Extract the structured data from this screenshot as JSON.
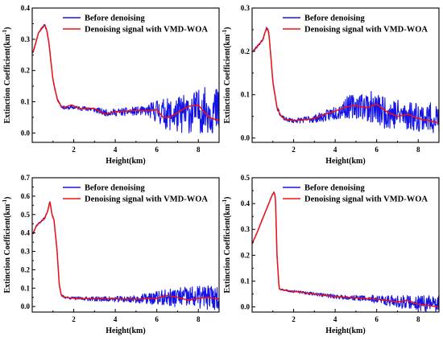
{
  "colors": {
    "before": "#1515e8",
    "after": "#ee1111",
    "axis": "#000000"
  },
  "chart_data": [
    {
      "type": "line",
      "xlabel": "Height(km)",
      "ylabel": "Extinction Coefficient(km",
      "ylabel_sup": "-1",
      "ylabel_close": ")",
      "xlim": [
        0,
        9
      ],
      "ylim": [
        -0.03,
        0.4
      ],
      "xticks": [
        "2",
        "4",
        "6",
        "8"
      ],
      "yticks": [
        "0.0",
        "0.1",
        "0.2",
        "0.3",
        "0.4"
      ],
      "legend": {
        "position": "top-right",
        "entries": [
          "Before denoising",
          "Denoising signal with VMD-WOA"
        ]
      },
      "series": [
        {
          "name": "Before denoising",
          "noise": [
            [
              0,
              0.004
            ],
            [
              2,
              0.006
            ],
            [
              4,
              0.012
            ],
            [
              5.5,
              0.015
            ],
            [
              6,
              0.04
            ],
            [
              7,
              0.06
            ],
            [
              9,
              0.08
            ]
          ],
          "seed": 11,
          "x": [
            0.05,
            0.3,
            0.5,
            0.6,
            0.7,
            0.8,
            0.9,
            1.0,
            1.2,
            1.4,
            1.6,
            2.0,
            2.5,
            3.0,
            3.5,
            4.0,
            5.0,
            6.0,
            6.5,
            7.0,
            8.0,
            8.5,
            9.0
          ],
          "values": [
            0.26,
            0.32,
            0.34,
            0.345,
            0.33,
            0.29,
            0.23,
            0.17,
            0.11,
            0.085,
            0.08,
            0.082,
            0.078,
            0.075,
            0.065,
            0.066,
            0.07,
            0.072,
            0.06,
            0.058,
            0.07,
            0.075,
            0.065
          ]
        },
        {
          "name": "Denoising signal with VMD-WOA",
          "x": [
            0.05,
            0.3,
            0.5,
            0.6,
            0.7,
            0.8,
            0.9,
            1.0,
            1.2,
            1.4,
            1.6,
            1.9,
            2.3,
            2.7,
            3.0,
            3.5,
            4.0,
            4.5,
            5.0,
            5.5,
            6.0,
            6.3,
            6.6,
            7.0,
            7.5,
            8.0,
            8.5,
            9.0
          ],
          "values": [
            0.26,
            0.32,
            0.34,
            0.345,
            0.33,
            0.29,
            0.23,
            0.17,
            0.11,
            0.085,
            0.083,
            0.09,
            0.078,
            0.08,
            0.078,
            0.06,
            0.068,
            0.07,
            0.072,
            0.071,
            0.075,
            0.05,
            0.05,
            0.065,
            0.085,
            0.09,
            0.05,
            0.04
          ]
        }
      ]
    },
    {
      "type": "line",
      "xlabel": "Height(km)",
      "ylabel": "Extinction Coefficient(km",
      "ylabel_sup": "-1",
      "ylabel_close": ")",
      "xlim": [
        0,
        9
      ],
      "ylim": [
        -0.01,
        0.3
      ],
      "xticks": [
        "2",
        "4",
        "6",
        "8"
      ],
      "yticks": [
        "0.0",
        "0.1",
        "0.2",
        "0.3"
      ],
      "legend": {
        "position": "top-right",
        "entries": [
          "Before denoising",
          "Denoising signal with VMD-WOA"
        ]
      },
      "series": [
        {
          "name": "Before denoising",
          "noise": [
            [
              0,
              0.003
            ],
            [
              2,
              0.005
            ],
            [
              3.5,
              0.012
            ],
            [
              4.5,
              0.025
            ],
            [
              6,
              0.04
            ],
            [
              7.5,
              0.035
            ],
            [
              9,
              0.035
            ]
          ],
          "seed": 23,
          "x": [
            0.05,
            0.3,
            0.5,
            0.6,
            0.7,
            0.8,
            0.9,
            1.0,
            1.2,
            1.4,
            1.6,
            2.0,
            2.5,
            3.0,
            3.5,
            4.0,
            4.5,
            5.0,
            5.5,
            6.0,
            6.5,
            7.0,
            8.0,
            9.0
          ],
          "values": [
            0.2,
            0.215,
            0.225,
            0.24,
            0.255,
            0.245,
            0.19,
            0.13,
            0.07,
            0.05,
            0.043,
            0.04,
            0.042,
            0.045,
            0.05,
            0.06,
            0.07,
            0.075,
            0.075,
            0.065,
            0.06,
            0.055,
            0.05,
            0.045
          ]
        },
        {
          "name": "Denoising signal with VMD-WOA",
          "x": [
            0.05,
            0.3,
            0.5,
            0.6,
            0.7,
            0.8,
            0.9,
            1.0,
            1.2,
            1.4,
            1.6,
            2.0,
            2.5,
            3.0,
            3.5,
            4.0,
            4.5,
            5.0,
            5.5,
            6.0,
            6.5,
            7.0,
            7.5,
            8.0,
            8.5,
            9.0
          ],
          "values": [
            0.2,
            0.215,
            0.225,
            0.24,
            0.255,
            0.245,
            0.19,
            0.13,
            0.07,
            0.05,
            0.043,
            0.04,
            0.042,
            0.045,
            0.055,
            0.062,
            0.072,
            0.075,
            0.07,
            0.078,
            0.06,
            0.05,
            0.055,
            0.045,
            0.04,
            0.035
          ]
        }
      ]
    },
    {
      "type": "line",
      "xlabel": "Height(km)",
      "ylabel": "Extinction Coefficient(km",
      "ylabel_sup": "-1",
      "ylabel_close": ")",
      "xlim": [
        0,
        9
      ],
      "ylim": [
        -0.03,
        0.7
      ],
      "xticks": [
        "2",
        "4",
        "6",
        "8"
      ],
      "yticks": [
        "0.0",
        "0.1",
        "0.2",
        "0.3",
        "0.4",
        "0.5",
        "0.6",
        "0.7"
      ],
      "legend": {
        "position": "top-right",
        "entries": [
          "Before denoising",
          "Denoising signal with VMD-WOA"
        ]
      },
      "series": [
        {
          "name": "Before denoising",
          "noise": [
            [
              0,
              0.006
            ],
            [
              1.5,
              0.006
            ],
            [
              3,
              0.012
            ],
            [
              5,
              0.02
            ],
            [
              6,
              0.04
            ],
            [
              7.5,
              0.06
            ],
            [
              9,
              0.07
            ]
          ],
          "seed": 37,
          "x": [
            0.05,
            0.2,
            0.4,
            0.6,
            0.75,
            0.85,
            0.95,
            1.05,
            1.2,
            1.3,
            1.4,
            1.6,
            2.0,
            3.0,
            4.0,
            5.0,
            6.0,
            7.0,
            8.0,
            9.0
          ],
          "values": [
            0.4,
            0.44,
            0.46,
            0.48,
            0.52,
            0.575,
            0.5,
            0.47,
            0.3,
            0.12,
            0.06,
            0.05,
            0.045,
            0.042,
            0.04,
            0.04,
            0.045,
            0.05,
            0.05,
            0.05
          ]
        },
        {
          "name": "Denoising signal with VMD-WOA",
          "x": [
            0.05,
            0.2,
            0.4,
            0.6,
            0.75,
            0.85,
            0.95,
            1.05,
            1.2,
            1.3,
            1.4,
            1.6,
            2.0,
            3.0,
            4.0,
            5.0,
            6.0,
            6.5,
            7.0,
            7.5,
            8.0,
            8.5,
            9.0
          ],
          "values": [
            0.4,
            0.44,
            0.46,
            0.48,
            0.52,
            0.575,
            0.5,
            0.47,
            0.3,
            0.12,
            0.06,
            0.05,
            0.045,
            0.042,
            0.042,
            0.04,
            0.045,
            0.06,
            0.05,
            0.035,
            0.045,
            0.05,
            0.04
          ]
        }
      ]
    },
    {
      "type": "line",
      "xlabel": "Height(km)",
      "ylabel": "Extinction Coefficient(km",
      "ylabel_sup": "-1",
      "ylabel_close": ")",
      "xlim": [
        0,
        9
      ],
      "ylim": [
        -0.02,
        0.5
      ],
      "xticks": [
        "2",
        "4",
        "6",
        "8"
      ],
      "yticks": [
        "0.0",
        "0.1",
        "0.2",
        "0.3",
        "0.4",
        "0.5"
      ],
      "legend": {
        "position": "top-right",
        "entries": [
          "Before denoising",
          "Denoising signal with VMD-WOA"
        ]
      },
      "series": [
        {
          "name": "Before denoising",
          "noise": [
            [
              0,
              0.003
            ],
            [
              1.3,
              0.003
            ],
            [
              3,
              0.006
            ],
            [
              5,
              0.01
            ],
            [
              6.5,
              0.02
            ],
            [
              8,
              0.03
            ],
            [
              9,
              0.035
            ]
          ],
          "seed": 51,
          "x": [
            0.0,
            0.2,
            0.4,
            0.6,
            0.8,
            0.95,
            1.05,
            1.12,
            1.2,
            1.3,
            1.5,
            2.0,
            3.0,
            4.0,
            5.0,
            6.0,
            7.0,
            8.0,
            9.0
          ],
          "values": [
            0.245,
            0.28,
            0.32,
            0.36,
            0.4,
            0.43,
            0.445,
            0.43,
            0.2,
            0.07,
            0.065,
            0.06,
            0.05,
            0.04,
            0.035,
            0.03,
            0.02,
            0.015,
            0.01
          ]
        },
        {
          "name": "Denoising signal with VMD-WOA",
          "x": [
            0.0,
            0.2,
            0.4,
            0.6,
            0.8,
            0.95,
            1.05,
            1.12,
            1.2,
            1.3,
            1.5,
            2.0,
            3.0,
            4.0,
            5.0,
            6.0,
            7.0,
            7.5,
            8.0,
            8.5,
            9.0
          ],
          "values": [
            0.245,
            0.28,
            0.32,
            0.36,
            0.4,
            0.43,
            0.445,
            0.43,
            0.2,
            0.07,
            0.065,
            0.06,
            0.05,
            0.04,
            0.035,
            0.03,
            0.02,
            0.025,
            0.01,
            0.005,
            0.0
          ]
        }
      ]
    }
  ]
}
